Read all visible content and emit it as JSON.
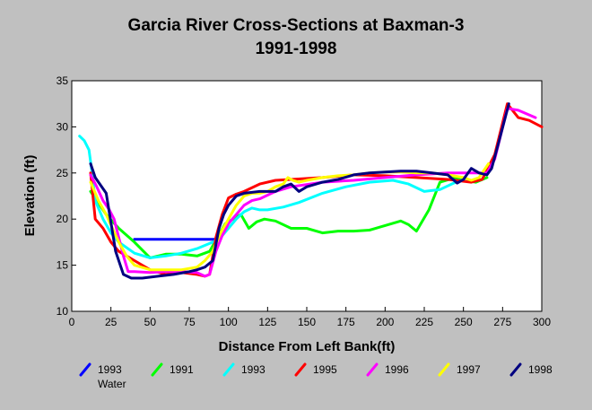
{
  "title": {
    "line1": "Garcia River Cross-Sections at Baxman-3",
    "line2": "1991-1998"
  },
  "chart_data": {
    "type": "line",
    "xlabel": "Distance From Left Bank(ft)",
    "ylabel": "Elevation (ft)",
    "xlim": [
      0,
      300
    ],
    "ylim": [
      10,
      35
    ],
    "xticks": [
      0,
      25,
      50,
      75,
      100,
      125,
      150,
      175,
      200,
      225,
      250,
      275,
      300
    ],
    "yticks": [
      10,
      15,
      20,
      25,
      30,
      35
    ],
    "grid": false,
    "legend_position": "bottom",
    "series": [
      {
        "name": "1993",
        "sub": "Water",
        "color": "#0000ff",
        "x": [
          40,
          92
        ],
        "y": [
          17.8,
          17.8
        ]
      },
      {
        "name": "1991",
        "color": "#00ff00",
        "x": [
          12,
          22,
          30,
          40,
          50,
          60,
          70,
          80,
          88,
          93,
          98,
          103,
          108,
          113,
          118,
          123,
          130,
          140,
          150,
          160,
          170,
          180,
          190,
          200,
          210,
          215,
          220,
          228,
          235,
          245,
          250,
          258,
          265
        ],
        "y": [
          23,
          20.5,
          19,
          17.5,
          15.8,
          16.2,
          16.2,
          16,
          16.5,
          18,
          19.5,
          20,
          20.5,
          19,
          19.7,
          20,
          19.8,
          19,
          19,
          18.5,
          18.7,
          18.7,
          18.8,
          19.3,
          19.8,
          19.4,
          18.7,
          21,
          24,
          24.5,
          24.2,
          24,
          24.5
        ]
      },
      {
        "name": "1993",
        "color": "#00ffff",
        "x": [
          5,
          8,
          11,
          13,
          15,
          20,
          25,
          30,
          40,
          50,
          60,
          70,
          80,
          90,
          95,
          100,
          105,
          110,
          115,
          120,
          125,
          135,
          145,
          160,
          175,
          190,
          205,
          215,
          225,
          235,
          245,
          250,
          255
        ],
        "y": [
          29,
          28.5,
          27.5,
          25,
          22,
          20,
          18.5,
          17.5,
          16.3,
          15.8,
          16,
          16.3,
          16.8,
          17.5,
          18,
          19,
          20,
          20.8,
          21.2,
          21,
          21,
          21.3,
          21.8,
          22.8,
          23.5,
          24,
          24.2,
          23.8,
          23,
          23.2,
          24,
          24.3,
          24
        ]
      },
      {
        "name": "1995",
        "color": "#ff0000",
        "x": [
          12,
          15,
          20,
          25,
          30,
          40,
          50,
          60,
          70,
          80,
          85,
          88,
          92,
          96,
          100,
          105,
          110,
          120,
          130,
          140,
          160,
          180,
          200,
          220,
          240,
          255,
          262,
          270,
          278,
          285,
          292,
          300
        ],
        "y": [
          25,
          20,
          19,
          17.5,
          16.5,
          15.5,
          14.5,
          14,
          14.2,
          14,
          13.8,
          14,
          18,
          20.5,
          22.3,
          22.7,
          23,
          23.8,
          24.2,
          24.3,
          24.5,
          24.8,
          24.7,
          24.5,
          24.3,
          24,
          24.3,
          27,
          32.5,
          31,
          30.7,
          30
        ]
      },
      {
        "name": "1996",
        "color": "#ff00ff",
        "x": [
          12,
          16,
          20,
          24,
          27,
          30,
          33,
          36,
          40,
          50,
          60,
          70,
          80,
          85,
          88,
          92,
          96,
          100,
          105,
          110,
          115,
          120,
          130,
          140,
          160,
          180,
          200,
          220,
          240,
          260,
          265,
          270,
          278,
          285,
          296
        ],
        "y": [
          24.8,
          23.5,
          22,
          21,
          20,
          18,
          16,
          14.3,
          14.3,
          14.2,
          14.3,
          14.3,
          14.2,
          13.8,
          14,
          16.5,
          18.2,
          19.5,
          20.5,
          21.5,
          22,
          22.2,
          23,
          23.5,
          24,
          24.2,
          24.5,
          24.8,
          25,
          25,
          25,
          26.5,
          32,
          31.8,
          31
        ]
      },
      {
        "name": "1997",
        "color": "#ffff00",
        "x": [
          12,
          17,
          22,
          26,
          30,
          35,
          40,
          50,
          60,
          70,
          80,
          85,
          90,
          95,
          100,
          105,
          110,
          115,
          120,
          125,
          130,
          135,
          138,
          141,
          145,
          150,
          160,
          170,
          180,
          190,
          200,
          210,
          220,
          230,
          240,
          250,
          255,
          260,
          266
        ],
        "y": [
          24,
          22,
          20.5,
          19,
          17.5,
          16,
          15,
          14.5,
          14.5,
          14.5,
          14.8,
          15.5,
          16.5,
          18.5,
          20,
          21.5,
          22.5,
          22.8,
          22.8,
          23,
          23.5,
          23.8,
          24.5,
          24.2,
          24,
          24.2,
          24.5,
          24.7,
          24.8,
          25,
          25.1,
          25.1,
          25,
          25,
          24.8,
          24.5,
          24.2,
          24.5,
          26
        ]
      },
      {
        "name": "1998",
        "color": "#000080",
        "x": [
          12,
          15,
          22,
          28,
          33,
          38,
          45,
          55,
          65,
          75,
          80,
          85,
          90,
          94,
          97,
          100,
          105,
          110,
          120,
          130,
          135,
          140,
          145,
          150,
          160,
          170,
          180,
          190,
          200,
          210,
          220,
          230,
          240,
          246,
          250,
          255,
          260,
          265,
          268,
          272,
          279
        ],
        "y": [
          26,
          24.5,
          22.8,
          16.5,
          14,
          13.6,
          13.6,
          13.8,
          14,
          14.3,
          14.5,
          14.8,
          15.5,
          19,
          20.5,
          21.5,
          22.5,
          22.8,
          23,
          23,
          23.5,
          23.8,
          23,
          23.5,
          24,
          24.3,
          24.8,
          25,
          25.1,
          25.2,
          25.2,
          25,
          24.8,
          23.9,
          24.3,
          25.5,
          25,
          24.8,
          25.5,
          28,
          32.5
        ]
      }
    ]
  }
}
